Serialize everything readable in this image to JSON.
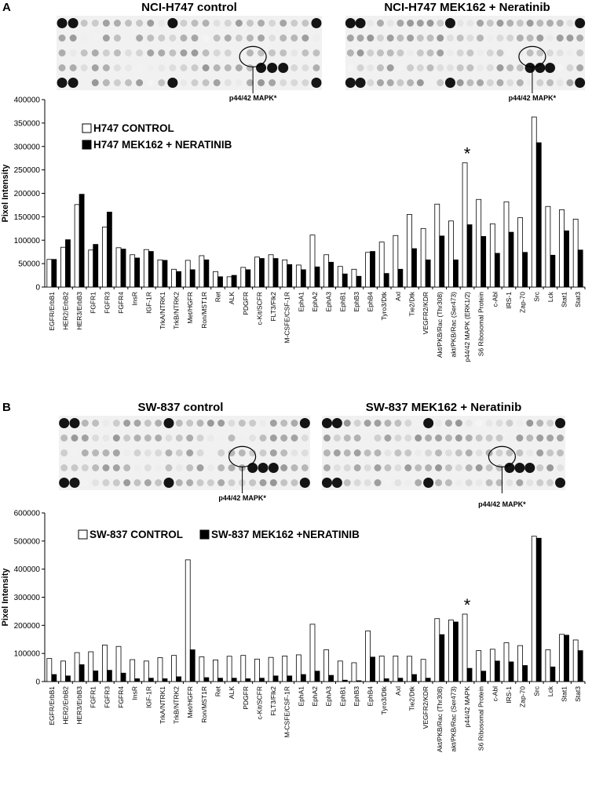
{
  "chart_data": [
    {
      "type": "bar",
      "panel_label": "A",
      "blots": [
        {
          "title": "NCI-H747 control",
          "annotation": "p44/42 MAPK*"
        },
        {
          "title": "NCI-H747 MEK162 + Neratinib",
          "annotation": "p44/42 MAPK*"
        }
      ],
      "y_label": "Pixel Intensity",
      "categories": [
        "EGFR/ErbB1",
        "HER2/ErbB2",
        "HER3/ErbB3",
        "FGFR1",
        "FGFR3",
        "FGFR4",
        "InsR",
        "IGF-1R",
        "TrkA/NTRK1",
        "TrkB/NTRK2",
        "Met/HGFR",
        "Ron/MST1R",
        "Ret",
        "ALK",
        "PDGFR",
        "c-Kit/SCFR",
        "FLT3/Flk2",
        "M-CSFE/CSF-1R",
        "EphA1",
        "EphA2",
        "EphA3",
        "EphB1",
        "EphB3",
        "EphB4",
        "Tyro3/Dtk",
        "Axl",
        "Tie2/Dtk",
        "VEGFR2/KDR",
        "Akt/PKB/Rac (Thr308)",
        "akt/PKB/Rac (Ser473)",
        "p44/42 MAPK (ERK1/2)",
        "S6 Ribosomal Protein",
        "c-Abl",
        "IRS-1",
        "Zap-70",
        "Src",
        "Lck",
        "Stat1",
        "Stat3"
      ],
      "series": [
        {
          "name": "H747 CONTROL",
          "color": "#ffffff",
          "values": [
            59000,
            85000,
            176000,
            79000,
            128000,
            84000,
            69000,
            80000,
            58000,
            38000,
            57000,
            67000,
            33000,
            22000,
            42000,
            64000,
            69000,
            58000,
            47000,
            111000,
            69000,
            44000,
            38000,
            74000,
            96000,
            110000,
            155000,
            125000,
            177000,
            141000,
            265000,
            187000,
            135000,
            182000,
            148000,
            363000,
            172000,
            165000,
            145000
          ]
        },
        {
          "name": "H747 MEK162 + NERATINIB",
          "color": "#000000",
          "values": [
            59000,
            101000,
            198000,
            91000,
            160000,
            81000,
            62000,
            76000,
            57000,
            33000,
            37000,
            58000,
            22000,
            25000,
            37000,
            61000,
            61000,
            48000,
            37000,
            43000,
            53000,
            28000,
            23000,
            76000,
            29000,
            38000,
            82000,
            58000,
            109000,
            58000,
            133000,
            108000,
            72000,
            117000,
            74000,
            308000,
            68000,
            120000,
            79000
          ]
        }
      ],
      "annotation": {
        "text": "*",
        "at": "p44/42 MAPK (ERK1/2)"
      },
      "ylim": [
        0,
        400000
      ],
      "yticks": [
        0,
        50000,
        100000,
        150000,
        200000,
        250000,
        300000,
        350000,
        400000
      ],
      "legend": "upper left",
      "legend_layout": "vertical"
    },
    {
      "type": "bar",
      "panel_label": "B",
      "blots": [
        {
          "title": "SW-837 control",
          "annotation": "p44/42 MAPK*"
        },
        {
          "title": "SW-837 MEK162 + Neratinib",
          "annotation": "p44/42 MAPK*"
        }
      ],
      "y_label": "Pixel Intensity",
      "categories": [
        "EGFR/ErbB1",
        "HER2/ErbB2",
        "HER3/ErbB3",
        "FGFR1",
        "FGFR3",
        "FGFR4",
        "InsR",
        "IGF-1R",
        "TrkA/NTRK1",
        "TrkB/NTRK2",
        "Met/HGFR",
        "Ron/MST1R",
        "Ret",
        "ALK",
        "PDGFR",
        "c-Kit/SCFR",
        "FLT3/Flk2",
        "M-CSFE/CSF-1R",
        "EphA1",
        "EphA2",
        "EphA3",
        "EphB1",
        "EphB3",
        "EphB4",
        "Tyro3/Dtk",
        "Axl",
        "Tie2/Dtk",
        "VEGFR2/KDR",
        "Akt/PKB/Rac (Thr308)",
        "akt/PKB/Rac (Ser473)",
        "p44/42 MAPK",
        "S6 Ribosomal Protein",
        "c-Abl",
        "IRS-1",
        "Zap-70",
        "Src",
        "Lck",
        "Stat1",
        "Stat3"
      ],
      "series": [
        {
          "name": "SW-837 CONTROL",
          "color": "#ffffff",
          "values": [
            82000,
            73000,
            103000,
            106000,
            130000,
            125000,
            78000,
            73000,
            85000,
            93000,
            433000,
            88000,
            77000,
            90000,
            93000,
            80000,
            86000,
            91000,
            95000,
            204000,
            113000,
            73000,
            67000,
            180000,
            91000,
            91000,
            90000,
            79000,
            224000,
            219000,
            240000,
            110000,
            115000,
            138000,
            128000,
            517000,
            113000,
            168000,
            148000
          ]
        },
        {
          "name": "SW-837 MEK162 +NERATINIB",
          "color": "#000000",
          "values": [
            25000,
            20000,
            60000,
            38000,
            40000,
            30000,
            10000,
            12000,
            10000,
            17000,
            113000,
            14000,
            12000,
            12000,
            10000,
            12000,
            20000,
            20000,
            25000,
            37000,
            22000,
            5000,
            3000,
            87000,
            10000,
            12000,
            25000,
            12000,
            167000,
            212000,
            47000,
            37000,
            73000,
            70000,
            57000,
            510000,
            52000,
            165000,
            110000
          ]
        }
      ],
      "annotation": {
        "text": "*",
        "at": "p44/42 MAPK"
      },
      "ylim": [
        0,
        600000
      ],
      "yticks": [
        0,
        100000,
        200000,
        300000,
        400000,
        500000,
        600000
      ],
      "legend": "upper left",
      "legend_layout": "horizontal"
    }
  ]
}
